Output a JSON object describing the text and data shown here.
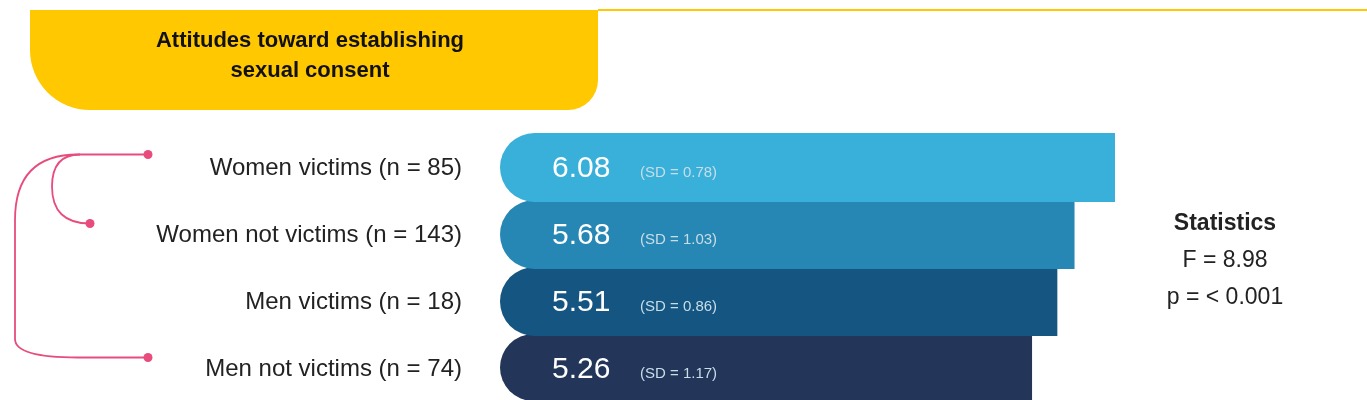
{
  "chart_data": {
    "type": "bar",
    "orientation": "horizontal",
    "title": "Attitudes toward establishing sexual consent",
    "categories": [
      "Women victims (n = 85)",
      "Women not victims (n = 143)",
      "Men victims  (n = 18)",
      "Men not victims (n = 74)"
    ],
    "values": [
      6.08,
      5.68,
      5.51,
      5.26
    ],
    "colors": [
      "#38b0d9",
      "#2787b4",
      "#145581",
      "#233659"
    ],
    "value_labels": [
      "6.08 (SD = 0.78)",
      "5.68 (SD = 1.03)",
      "5.51 (SD = 0.86)",
      "5.26 (SD = 1.17)"
    ],
    "annotations": [
      "Statistics",
      "F = 8.98",
      "p = < 0.001"
    ]
  }
}
